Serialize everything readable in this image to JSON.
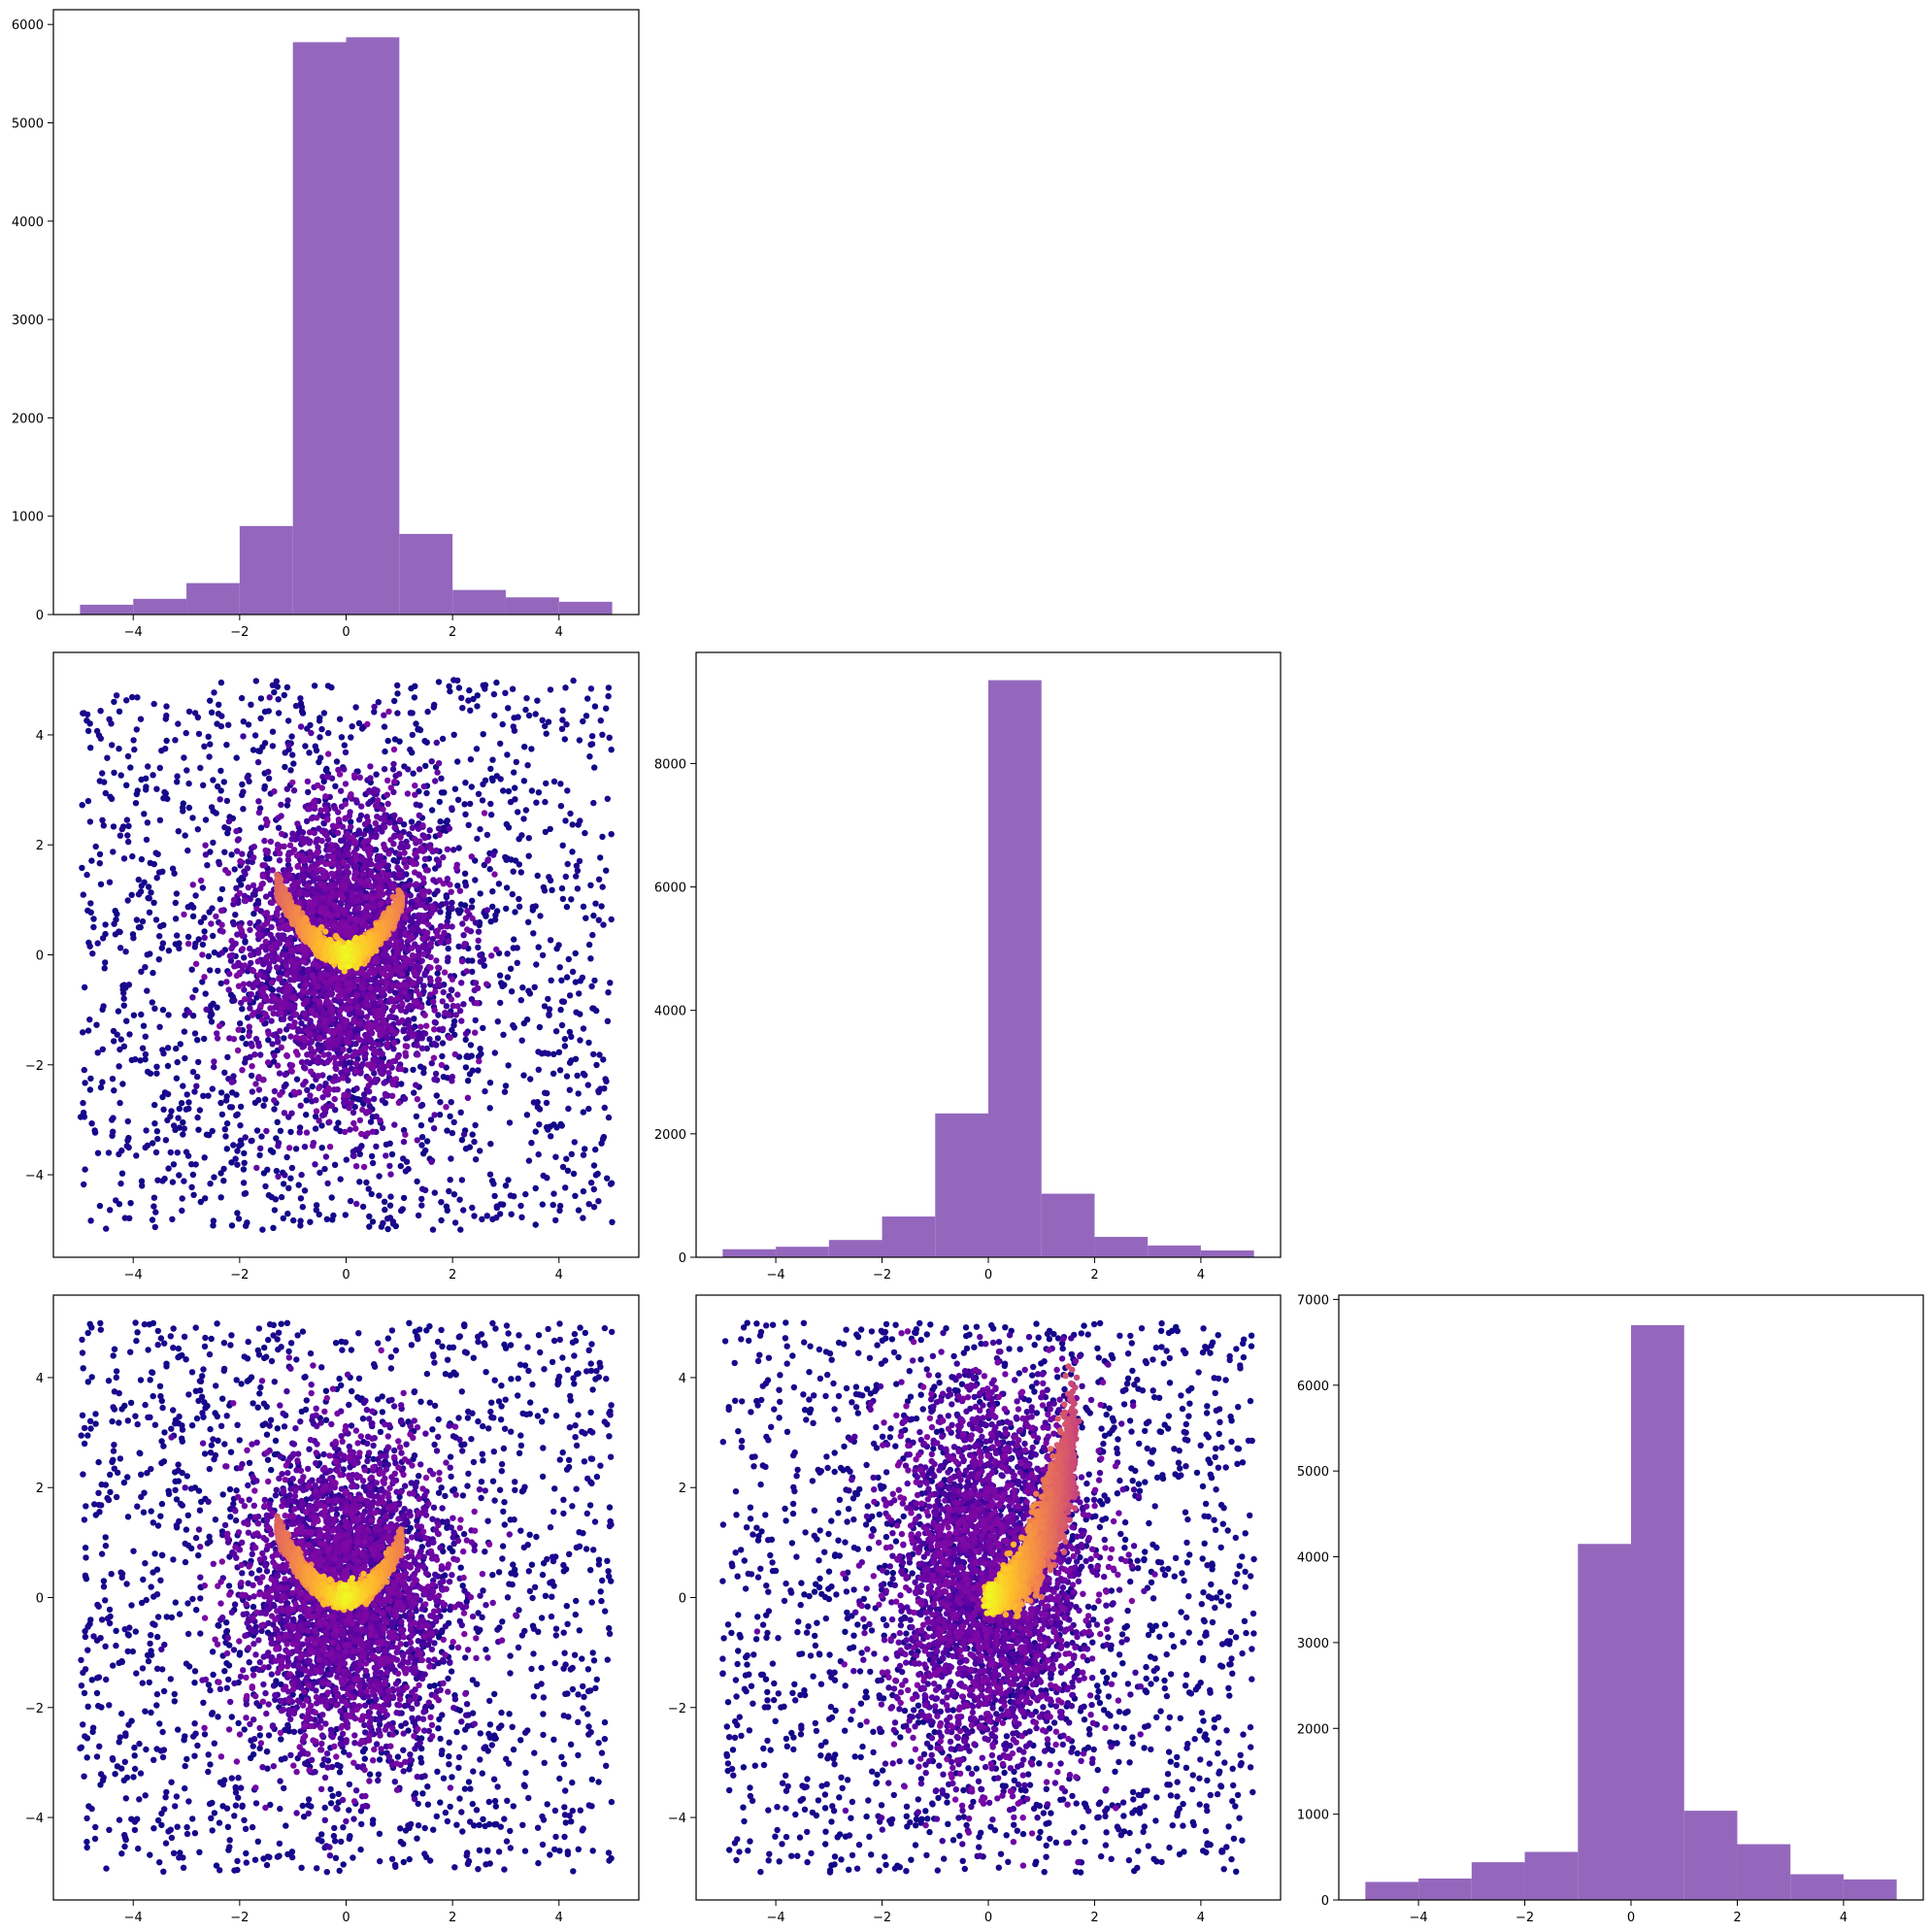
{
  "chart_data": [
    {
      "type": "bar",
      "panel": "row-1-col-1",
      "bin_edges": [
        -5,
        -4,
        -3,
        -2,
        -1,
        0,
        1,
        2,
        3,
        4,
        5
      ],
      "values": [
        100,
        160,
        320,
        900,
        5820,
        5870,
        820,
        250,
        175,
        130
      ],
      "xlim": [
        -5.5,
        5.5
      ],
      "ylim": [
        0,
        6150
      ],
      "xticks": [
        -4,
        -2,
        0,
        2,
        4
      ],
      "xtick_labels": [
        "−4",
        "−2",
        "0",
        "2",
        "4"
      ],
      "yticks": [
        0,
        1000,
        2000,
        3000,
        4000,
        5000,
        6000
      ],
      "ytick_labels": [
        "0",
        "1000",
        "2000",
        "3000",
        "4000",
        "5000",
        "6000"
      ],
      "color": "#9467bd"
    },
    {
      "type": "scatter",
      "panel": "row-2-col-1",
      "xlim": [
        -5.5,
        5.5
      ],
      "ylim": [
        -5.5,
        5.5
      ],
      "xticks": [
        -4,
        -2,
        0,
        2,
        4
      ],
      "xtick_labels": [
        "−4",
        "−2",
        "0",
        "2",
        "4"
      ],
      "yticks": [
        -4,
        -2,
        0,
        2,
        4
      ],
      "ytick_labels": [
        "−4",
        "−2",
        "0",
        "2",
        "4"
      ],
      "ridge": "banana",
      "colormap": "plasma"
    },
    {
      "type": "bar",
      "panel": "row-2-col-2",
      "bin_edges": [
        -5,
        -4,
        -3,
        -2,
        -1,
        0,
        1,
        2,
        3,
        4,
        5
      ],
      "values": [
        130,
        170,
        280,
        660,
        2330,
        9350,
        1030,
        330,
        190,
        110
      ],
      "xlim": [
        -5.5,
        5.5
      ],
      "ylim": [
        0,
        9800
      ],
      "xticks": [
        -4,
        -2,
        0,
        2,
        4
      ],
      "xtick_labels": [
        "−4",
        "−2",
        "0",
        "2",
        "4"
      ],
      "yticks": [
        0,
        2000,
        4000,
        6000,
        8000
      ],
      "ytick_labels": [
        "0",
        "2000",
        "4000",
        "6000",
        "8000"
      ],
      "color": "#9467bd"
    },
    {
      "type": "scatter",
      "panel": "row-3-col-1",
      "xlim": [
        -5.5,
        5.5
      ],
      "ylim": [
        -5.5,
        5.5
      ],
      "xticks": [
        -4,
        -2,
        0,
        2,
        4
      ],
      "xtick_labels": [
        "−4",
        "−2",
        "0",
        "2",
        "4"
      ],
      "yticks": [
        -4,
        -2,
        0,
        2,
        4
      ],
      "ytick_labels": [
        "−4",
        "−2",
        "0",
        "2",
        "4"
      ],
      "ridge": "banana",
      "colormap": "plasma"
    },
    {
      "type": "scatter",
      "panel": "row-3-col-2",
      "xlim": [
        -5.5,
        5.5
      ],
      "ylim": [
        -5.5,
        5.5
      ],
      "xticks": [
        -4,
        -2,
        0,
        2,
        4
      ],
      "xtick_labels": [
        "−4",
        "−2",
        "0",
        "2",
        "4"
      ],
      "yticks": [
        -4,
        -2,
        0,
        2,
        4
      ],
      "ytick_labels": [
        "−4",
        "−2",
        "0",
        "2",
        "4"
      ],
      "ridge": "parabola",
      "colormap": "plasma"
    },
    {
      "type": "bar",
      "panel": "row-3-col-3",
      "bin_edges": [
        -5,
        -4,
        -3,
        -2,
        -1,
        0,
        1,
        2,
        3,
        4,
        5
      ],
      "values": [
        210,
        250,
        440,
        560,
        4150,
        6700,
        1040,
        650,
        300,
        240
      ],
      "xlim": [
        -5.5,
        5.5
      ],
      "ylim": [
        0,
        7050
      ],
      "xticks": [
        -4,
        -2,
        0,
        2,
        4
      ],
      "xtick_labels": [
        "−4",
        "−2",
        "0",
        "2",
        "4"
      ],
      "yticks": [
        0,
        1000,
        2000,
        3000,
        4000,
        5000,
        6000,
        7000
      ],
      "ytick_labels": [
        "0",
        "1000",
        "2000",
        "3000",
        "4000",
        "5000",
        "6000",
        "7000"
      ],
      "color": "#9467bd"
    }
  ]
}
